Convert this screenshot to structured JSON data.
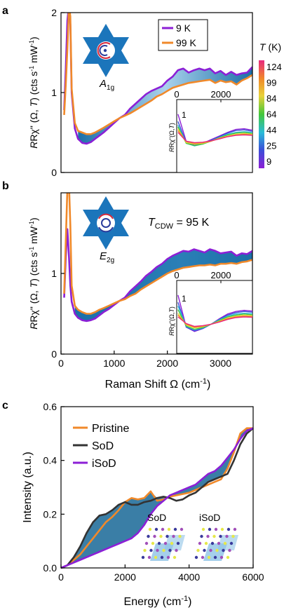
{
  "colors": {
    "purple": "#8c1fd6",
    "orange": "#f0892a",
    "black": "#333333",
    "fill_dark": "#1c6fa8",
    "fill_light": "#cfe6f4",
    "star": "#1b75bb"
  },
  "chart_data": [
    {
      "panel_label": "a",
      "type": "line",
      "xlim": [
        0,
        3600
      ],
      "ylim": [
        0,
        2
      ],
      "yticks": [
        "0",
        "1",
        "2"
      ],
      "ylabel_parts": [
        "Rχ\" (Ω, ",
        "T",
        ") (cts s",
        "-1",
        " mW",
        "-1",
        ")"
      ],
      "symmetry_label": [
        "A",
        "1g"
      ],
      "legend": [
        "9 K",
        "99 K"
      ],
      "series": [
        {
          "name": "9 K",
          "color": "#8c1fd6",
          "x": [
            60,
            90,
            120,
            150,
            175,
            200,
            260,
            320,
            400,
            480,
            560,
            640,
            720,
            800,
            900,
            1000,
            1100,
            1200,
            1300,
            1400,
            1500,
            1600,
            1700,
            1800,
            1900,
            2000,
            2100,
            2200,
            2300,
            2400,
            2500,
            2600,
            2700,
            2800,
            2900,
            3000,
            3100,
            3200,
            3300,
            3400,
            3500,
            3600
          ],
          "y": [
            0.78,
            1.3,
            1.9,
            2.1,
            1.85,
            1.0,
            0.55,
            0.42,
            0.37,
            0.36,
            0.38,
            0.42,
            0.46,
            0.5,
            0.56,
            0.62,
            0.68,
            0.72,
            0.8,
            0.86,
            0.92,
            0.98,
            1.02,
            1.05,
            1.08,
            1.15,
            1.2,
            1.28,
            1.3,
            1.25,
            1.28,
            1.3,
            1.28,
            1.3,
            1.24,
            1.27,
            1.22,
            1.26,
            1.22,
            1.24,
            1.25,
            1.32
          ]
        },
        {
          "name": "99 K",
          "color": "#f0892a",
          "x": [
            60,
            90,
            120,
            150,
            175,
            200,
            260,
            320,
            400,
            480,
            560,
            640,
            720,
            800,
            900,
            1000,
            1100,
            1200,
            1300,
            1400,
            1500,
            1600,
            1700,
            1800,
            1900,
            2000,
            2100,
            2200,
            2300,
            2400,
            2500,
            2600,
            2700,
            2800,
            2900,
            3000,
            3100,
            3200,
            3300,
            3400,
            3500,
            3600
          ],
          "y": [
            0.72,
            1.1,
            1.55,
            2.1,
            1.95,
            1.05,
            0.62,
            0.52,
            0.5,
            0.48,
            0.48,
            0.5,
            0.53,
            0.56,
            0.6,
            0.64,
            0.68,
            0.71,
            0.74,
            0.78,
            0.82,
            0.86,
            0.9,
            0.95,
            0.98,
            1.02,
            1.06,
            1.08,
            1.1,
            1.12,
            1.13,
            1.14,
            1.15,
            1.16,
            1.12,
            1.15,
            1.13,
            1.14,
            1.1,
            1.15,
            1.18,
            1.22
          ]
        }
      ],
      "inset": {
        "xlim": [
          0,
          3600
        ],
        "xticks": [
          "0",
          "2000"
        ],
        "ytick": "1",
        "ylabel_parts": [
          "Rχ\"(Ω,",
          "T",
          ")"
        ],
        "series": [
          {
            "name": "9 K",
            "color": "#8c1fd6",
            "y": [
              1.6,
              0.85,
              0.75,
              0.8,
              0.9,
              1.0,
              1.1,
              1.18,
              1.2,
              1.16
            ]
          },
          {
            "name": "25 K",
            "color": "#3b4fd8",
            "y": [
              1.4,
              0.82,
              0.74,
              0.8,
              0.88,
              0.98,
              1.08,
              1.15,
              1.17,
              1.13
            ]
          },
          {
            "name": "44 K",
            "color": "#2bbbd9",
            "y": [
              1.3,
              0.8,
              0.73,
              0.78,
              0.87,
              0.96,
              1.05,
              1.1,
              1.12,
              1.1
            ]
          },
          {
            "name": "64 K",
            "color": "#43c73a",
            "y": [
              1.25,
              0.8,
              0.74,
              0.78,
              0.86,
              0.95,
              1.03,
              1.08,
              1.1,
              1.07
            ]
          },
          {
            "name": "84 K",
            "color": "#e8d23a",
            "y": [
              1.2,
              0.82,
              0.78,
              0.8,
              0.86,
              0.94,
              1.0,
              1.05,
              1.07,
              1.05
            ]
          },
          {
            "name": "99 K",
            "color": "#f0892a",
            "y": [
              1.15,
              0.85,
              0.8,
              0.82,
              0.86,
              0.93,
              0.99,
              1.03,
              1.05,
              1.03
            ]
          },
          {
            "name": "124 K",
            "color": "#e8297d",
            "y": [
              1.1,
              0.86,
              0.82,
              0.83,
              0.87,
              0.92,
              0.98,
              1.02,
              1.03,
              1.02
            ]
          }
        ]
      },
      "colorbar": {
        "title": "T (K)",
        "title_italic": "T",
        "title_rest": " (K)",
        "labels": [
          "124",
          "99",
          "84",
          "64",
          "44",
          "25",
          "9"
        ],
        "colors": [
          "#e8297d",
          "#f0892a",
          "#e8d23a",
          "#43c73a",
          "#2bbbd9",
          "#3b4fd8",
          "#8c1fd6"
        ]
      }
    },
    {
      "panel_label": "b",
      "type": "line",
      "xlim": [
        0,
        3600
      ],
      "ylim": [
        0,
        2
      ],
      "xticks": [
        "0",
        "1000",
        "2000",
        "3000"
      ],
      "yticks": [
        "0",
        "1"
      ],
      "xlabel": "Raman Shift Ω (cm-1)",
      "xlabel_parts": [
        "Raman Shift Ω (cm",
        "-1",
        ")"
      ],
      "ylabel_parts": [
        "Rχ\" (Ω, ",
        "T",
        ") (cts s",
        "-1",
        " mW",
        "-1",
        ")"
      ],
      "symmetry_label": [
        "E",
        "2g"
      ],
      "annotation": {
        "main": "T",
        "sub": "CDW",
        "rest": " = 95 K"
      },
      "series": [
        {
          "name": "9 K",
          "color": "#8c1fd6",
          "x": [
            60,
            90,
            120,
            150,
            175,
            200,
            260,
            320,
            400,
            480,
            560,
            640,
            720,
            800,
            900,
            1000,
            1100,
            1200,
            1300,
            1400,
            1500,
            1600,
            1700,
            1800,
            1900,
            2000,
            2100,
            2200,
            2300,
            2400,
            2500,
            2600,
            2700,
            2800,
            2900,
            3000,
            3100,
            3200,
            3300,
            3400,
            3500,
            3600
          ],
          "y": [
            0.7,
            1.2,
            1.55,
            1.2,
            0.85,
            0.65,
            0.5,
            0.45,
            0.42,
            0.41,
            0.42,
            0.44,
            0.48,
            0.52,
            0.56,
            0.61,
            0.66,
            0.7,
            0.78,
            0.84,
            0.9,
            0.97,
            1.02,
            1.08,
            1.12,
            1.18,
            1.22,
            1.25,
            1.28,
            1.27,
            1.3,
            1.28,
            1.26,
            1.3,
            1.28,
            1.25,
            1.26,
            1.27,
            1.22,
            1.25,
            1.24,
            1.28
          ]
        },
        {
          "name": "99 K",
          "color": "#f0892a",
          "x": [
            60,
            90,
            120,
            150,
            175,
            200,
            260,
            320,
            400,
            480,
            560,
            640,
            720,
            800,
            900,
            1000,
            1100,
            1200,
            1300,
            1400,
            1500,
            1600,
            1700,
            1800,
            1900,
            2000,
            2100,
            2200,
            2300,
            2400,
            2500,
            2600,
            2700,
            2800,
            2900,
            3000,
            3100,
            3200,
            3300,
            3400,
            3500,
            3600
          ],
          "y": [
            0.75,
            1.4,
            2.05,
            2.1,
            1.6,
            0.85,
            0.6,
            0.55,
            0.52,
            0.5,
            0.5,
            0.52,
            0.55,
            0.57,
            0.6,
            0.63,
            0.66,
            0.68,
            0.72,
            0.75,
            0.8,
            0.84,
            0.88,
            0.92,
            0.96,
            1.0,
            1.03,
            1.05,
            1.07,
            1.08,
            1.09,
            1.1,
            1.1,
            1.11,
            1.1,
            1.12,
            1.12,
            1.13,
            1.12,
            1.14,
            1.15,
            1.17
          ]
        }
      ],
      "inset": {
        "xlim": [
          0,
          3600
        ],
        "xticks": [
          "0",
          "2000"
        ],
        "ytick": "1",
        "ylabel_parts": [
          "Rχ\"(Ω,",
          "T",
          ")"
        ],
        "series": [
          {
            "name": "9 K",
            "color": "#8c1fd6",
            "y": [
              1.6,
              0.72,
              0.6,
              0.68,
              0.8,
              0.95,
              1.08,
              1.15,
              1.18,
              1.16
            ]
          },
          {
            "name": "25 K",
            "color": "#3b4fd8",
            "y": [
              1.4,
              0.72,
              0.62,
              0.68,
              0.8,
              0.93,
              1.05,
              1.12,
              1.15,
              1.13
            ]
          },
          {
            "name": "44 K",
            "color": "#2bbbd9",
            "y": [
              1.3,
              0.74,
              0.65,
              0.7,
              0.8,
              0.92,
              1.02,
              1.08,
              1.1,
              1.09
            ]
          },
          {
            "name": "64 K",
            "color": "#43c73a",
            "y": [
              1.2,
              0.75,
              0.66,
              0.71,
              0.8,
              0.9,
              1.0,
              1.05,
              1.08,
              1.06
            ]
          },
          {
            "name": "84 K",
            "color": "#e8d23a",
            "y": [
              1.1,
              0.78,
              0.7,
              0.73,
              0.8,
              0.88,
              0.97,
              1.02,
              1.05,
              1.03
            ]
          },
          {
            "name": "99 K",
            "color": "#f0892a",
            "y": [
              1.05,
              0.8,
              0.72,
              0.75,
              0.8,
              0.87,
              0.95,
              1.0,
              1.02,
              1.01
            ]
          },
          {
            "name": "124 K",
            "color": "#e8297d",
            "y": [
              1.0,
              0.82,
              0.74,
              0.76,
              0.8,
              0.86,
              0.93,
              0.98,
              1.0,
              0.99
            ]
          }
        ]
      }
    },
    {
      "panel_label": "c",
      "type": "line",
      "xlim": [
        0,
        6000
      ],
      "ylim": [
        0,
        0.6
      ],
      "xticks": [
        "0",
        "2000",
        "4000",
        "6000"
      ],
      "yticks": [
        "0.0",
        "0.2",
        "0.4",
        "0.6"
      ],
      "xlabel": "Energy (cm-1)",
      "xlabel_parts": [
        "Energy (cm",
        "-1",
        ")"
      ],
      "ylabel": "Intensity (a.u.)",
      "legend": [
        "Pristine",
        "SoD",
        "iSoD"
      ],
      "inset_labels": [
        "SoD",
        "iSoD"
      ],
      "series": [
        {
          "name": "Pristine",
          "color": "#f0892a",
          "x": [
            0,
            200,
            400,
            600,
            800,
            1000,
            1200,
            1400,
            1600,
            1800,
            2000,
            2200,
            2400,
            2600,
            2800,
            3000,
            3200,
            3400,
            3600,
            3800,
            4000,
            4200,
            4400,
            4600,
            4800,
            5000,
            5200,
            5400,
            5600,
            5800,
            6000
          ],
          "y": [
            0,
            0.01,
            0.03,
            0.05,
            0.08,
            0.11,
            0.14,
            0.17,
            0.19,
            0.215,
            0.245,
            0.26,
            0.255,
            0.26,
            0.285,
            0.25,
            0.255,
            0.265,
            0.27,
            0.275,
            0.28,
            0.29,
            0.3,
            0.31,
            0.32,
            0.33,
            0.37,
            0.43,
            0.5,
            0.52,
            0.52
          ]
        },
        {
          "name": "SoD",
          "color": "#333333",
          "x": [
            0,
            200,
            400,
            600,
            800,
            1000,
            1200,
            1400,
            1600,
            1800,
            2000,
            2200,
            2400,
            2600,
            2800,
            3000,
            3200,
            3400,
            3600,
            3800,
            4000,
            4200,
            4400,
            4600,
            4800,
            5000,
            5200,
            5400,
            5600,
            5800,
            6000
          ],
          "y": [
            0,
            0.01,
            0.04,
            0.08,
            0.13,
            0.17,
            0.195,
            0.2,
            0.215,
            0.235,
            0.245,
            0.235,
            0.235,
            0.245,
            0.25,
            0.26,
            0.265,
            0.26,
            0.25,
            0.255,
            0.27,
            0.28,
            0.3,
            0.32,
            0.33,
            0.34,
            0.35,
            0.4,
            0.46,
            0.5,
            0.52
          ]
        },
        {
          "name": "iSoD",
          "color": "#8c1fd6",
          "x": [
            0,
            200,
            400,
            600,
            800,
            1000,
            1200,
            1400,
            1600,
            1800,
            2000,
            2200,
            2400,
            2600,
            2800,
            3000,
            3200,
            3400,
            3600,
            3800,
            4000,
            4200,
            4400,
            4600,
            4800,
            5000,
            5200,
            5400,
            5600,
            5800,
            6000
          ],
          "y": [
            0,
            0.01,
            0.02,
            0.03,
            0.04,
            0.05,
            0.06,
            0.07,
            0.08,
            0.09,
            0.1,
            0.11,
            0.13,
            0.16,
            0.2,
            0.23,
            0.25,
            0.27,
            0.28,
            0.29,
            0.3,
            0.31,
            0.33,
            0.35,
            0.36,
            0.38,
            0.41,
            0.44,
            0.48,
            0.51,
            0.52
          ]
        }
      ]
    }
  ]
}
